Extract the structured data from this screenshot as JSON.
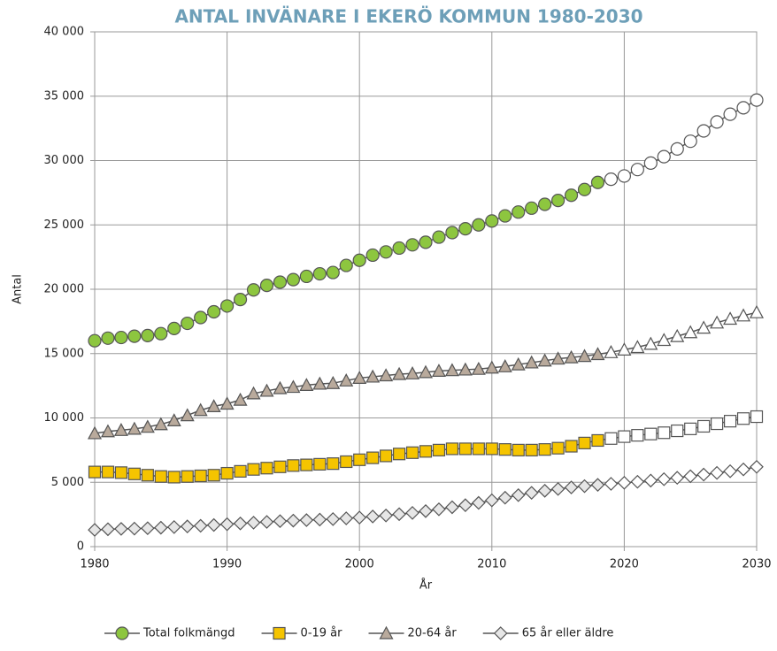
{
  "chart_data": {
    "type": "line",
    "title": "ANTAL INVÄNARE I EKERÖ KOMMUN 1980-2030",
    "x_label": "År",
    "y_label": "Antal",
    "x": [
      1980,
      1981,
      1982,
      1983,
      1984,
      1985,
      1986,
      1987,
      1988,
      1989,
      1990,
      1991,
      1992,
      1993,
      1994,
      1995,
      1996,
      1997,
      1998,
      1999,
      2000,
      2001,
      2002,
      2003,
      2004,
      2005,
      2006,
      2007,
      2008,
      2009,
      2010,
      2011,
      2012,
      2013,
      2014,
      2015,
      2016,
      2017,
      2018,
      2019,
      2020,
      2021,
      2022,
      2023,
      2024,
      2025,
      2026,
      2027,
      2028,
      2029,
      2030
    ],
    "prognosis_from_x": 2019,
    "series": [
      {
        "name": "Total folkmängd",
        "color": "#8dc63f",
        "marker": "circle",
        "values": [
          16000,
          16200,
          16250,
          16350,
          16400,
          16550,
          16950,
          17350,
          17800,
          18250,
          18700,
          19200,
          19950,
          20300,
          20550,
          20750,
          21000,
          21200,
          21300,
          21850,
          22250,
          22650,
          22900,
          23200,
          23450,
          23650,
          24050,
          24400,
          24700,
          25000,
          25300,
          25700,
          26000,
          26300,
          26600,
          26900,
          27300,
          27750,
          28300,
          28550,
          28800,
          29300,
          29800,
          30300,
          30900,
          31500,
          32300,
          33000,
          33600,
          34100,
          34700
        ]
      },
      {
        "name": "0-19 år",
        "color": "#f5c400",
        "marker": "square",
        "values": [
          5800,
          5800,
          5750,
          5650,
          5550,
          5450,
          5400,
          5450,
          5500,
          5550,
          5700,
          5850,
          6000,
          6100,
          6200,
          6300,
          6350,
          6400,
          6450,
          6600,
          6750,
          6900,
          7050,
          7200,
          7300,
          7400,
          7500,
          7600,
          7600,
          7600,
          7600,
          7550,
          7500,
          7500,
          7550,
          7650,
          7800,
          8050,
          8250,
          8400,
          8550,
          8650,
          8750,
          8850,
          9000,
          9150,
          9350,
          9550,
          9750,
          9950,
          10100
        ]
      },
      {
        "name": "20-64 år",
        "color": "#b9aa9c",
        "marker": "triangle",
        "values": [
          8800,
          8950,
          9050,
          9150,
          9300,
          9500,
          9800,
          10200,
          10600,
          10900,
          11100,
          11400,
          11900,
          12100,
          12300,
          12400,
          12550,
          12650,
          12700,
          12900,
          13100,
          13200,
          13300,
          13400,
          13450,
          13550,
          13650,
          13700,
          13750,
          13800,
          13900,
          14000,
          14150,
          14300,
          14450,
          14600,
          14700,
          14800,
          14950,
          15100,
          15300,
          15500,
          15750,
          16050,
          16350,
          16650,
          17000,
          17400,
          17700,
          17950,
          18200
        ]
      },
      {
        "name": "65 år eller äldre",
        "color": "#e6e6e6",
        "marker": "diamond",
        "values": [
          1300,
          1350,
          1380,
          1400,
          1430,
          1470,
          1520,
          1570,
          1620,
          1680,
          1740,
          1800,
          1860,
          1920,
          1980,
          2020,
          2060,
          2100,
          2140,
          2200,
          2260,
          2340,
          2420,
          2520,
          2620,
          2760,
          2900,
          3060,
          3220,
          3400,
          3600,
          3800,
          4000,
          4180,
          4340,
          4480,
          4600,
          4700,
          4800,
          4880,
          4960,
          5040,
          5130,
          5240,
          5350,
          5470,
          5600,
          5730,
          5860,
          6000,
          6200
        ]
      }
    ],
    "line_color": "#555555",
    "xlim": [
      1980,
      2030
    ],
    "xticks": [
      1980,
      1990,
      2000,
      2010,
      2020,
      2030
    ],
    "ylim": [
      0,
      40000
    ],
    "yticks": [
      0,
      {
        "value": 5000,
        "label": "5 000"
      },
      {
        "value": 10000,
        "label": "10 000"
      },
      {
        "value": 15000,
        "label": "15 000"
      },
      {
        "value": 20000,
        "label": "20 000"
      },
      {
        "value": 25000,
        "label": "25 000"
      },
      {
        "value": 30000,
        "label": "30 000"
      },
      {
        "value": 35000,
        "label": "35 000"
      },
      {
        "value": 40000,
        "label": "40 000"
      }
    ],
    "grid": true,
    "legend": "bottom"
  }
}
